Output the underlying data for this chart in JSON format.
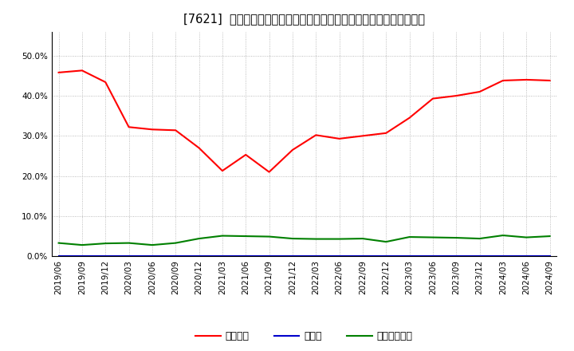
{
  "title": "[7621]  自己資本、のれん、繰延税金資産の総資産に対する比率の推移",
  "x_labels": [
    "2019/06",
    "2019/09",
    "2019/12",
    "2020/03",
    "2020/06",
    "2020/09",
    "2020/12",
    "2021/03",
    "2021/06",
    "2021/09",
    "2021/12",
    "2022/03",
    "2022/06",
    "2022/09",
    "2022/12",
    "2023/03",
    "2023/06",
    "2023/09",
    "2023/12",
    "2024/03",
    "2024/06",
    "2024/09"
  ],
  "equity": [
    0.458,
    0.463,
    0.434,
    0.322,
    0.316,
    0.314,
    0.27,
    0.213,
    0.253,
    0.21,
    0.265,
    0.302,
    0.293,
    0.3,
    0.307,
    0.345,
    0.393,
    0.4,
    0.41,
    0.438,
    0.44,
    0.438
  ],
  "noren": [
    0.0,
    0.0,
    0.0,
    0.0,
    0.0,
    0.0,
    0.0,
    0.0,
    0.0,
    0.0,
    0.0,
    0.0,
    0.0,
    0.0,
    0.0,
    0.0,
    0.0,
    0.0,
    0.0,
    0.0,
    0.0,
    0.0
  ],
  "deferred_tax": [
    0.033,
    0.028,
    0.032,
    0.033,
    0.028,
    0.033,
    0.044,
    0.051,
    0.05,
    0.049,
    0.044,
    0.043,
    0.043,
    0.044,
    0.036,
    0.048,
    0.047,
    0.046,
    0.044,
    0.052,
    0.047,
    0.05
  ],
  "equity_color": "#ff0000",
  "noren_color": "#0000cc",
  "deferred_tax_color": "#008000",
  "bg_color": "#ffffff",
  "plot_bg_color": "#ffffff",
  "grid_color": "#aaaaaa",
  "ylim": [
    0.0,
    0.56
  ],
  "yticks": [
    0.0,
    0.1,
    0.2,
    0.3,
    0.4,
    0.5
  ],
  "legend_labels": [
    "自己資本",
    "のれん",
    "繰延税金資産"
  ]
}
